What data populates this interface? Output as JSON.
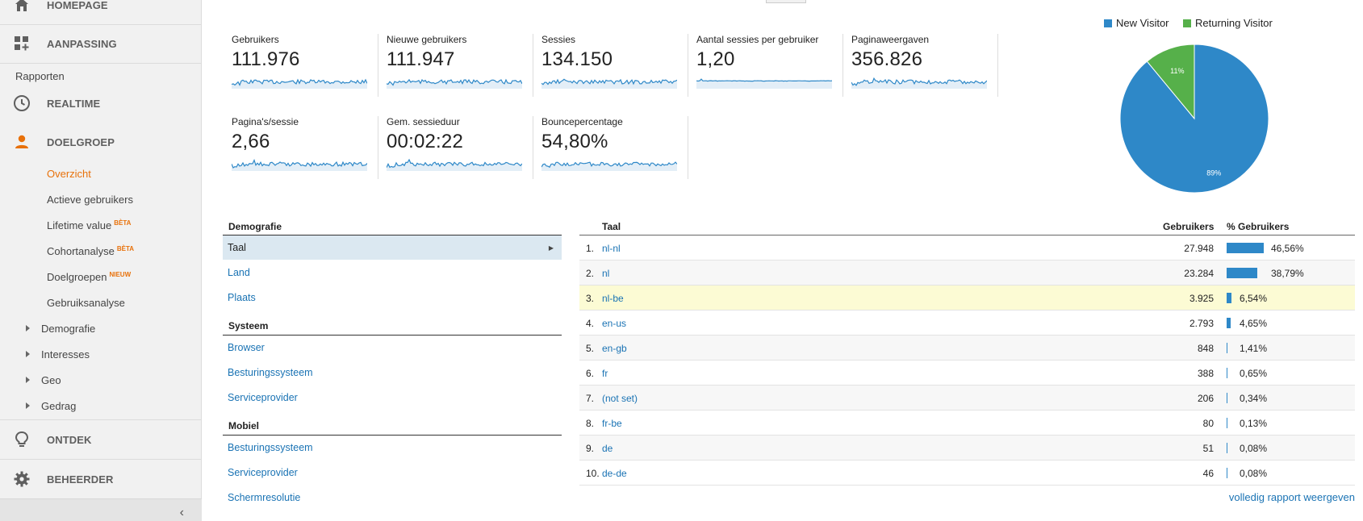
{
  "sidebar": {
    "home_label": "HOMEPAGE",
    "customization_label": "AANPASSING",
    "reports_section": "Rapporten",
    "realtime_label": "REALTIME",
    "audience_label": "DOELGROEP",
    "sub_items": [
      {
        "label": "Overzicht"
      },
      {
        "label": "Actieve gebruikers"
      },
      {
        "label": "Lifetime value",
        "badge": "BÈTA"
      },
      {
        "label": "Cohortanalyse",
        "badge": "BÈTA"
      },
      {
        "label": "Doelgroepen",
        "badge": "NIEUW"
      },
      {
        "label": "Gebruiksanalyse"
      }
    ],
    "tree_items": [
      "Demografie",
      "Interesses",
      "Geo",
      "Gedrag"
    ],
    "discover_label": "ONTDEK",
    "admin_label": "BEHEERDER",
    "collapse_glyph": "‹"
  },
  "metrics": [
    {
      "label": "Gebruikers",
      "value": "111.976"
    },
    {
      "label": "Nieuwe gebruikers",
      "value": "111.947"
    },
    {
      "label": "Sessies",
      "value": "134.150"
    },
    {
      "label": "Aantal sessies per gebruiker",
      "value": "1,20"
    },
    {
      "label": "Paginaweergaven",
      "value": "356.826"
    },
    {
      "label": "Pagina's/sessie",
      "value": "2,66"
    },
    {
      "label": "Gem. sessieduur",
      "value": "00:02:22"
    },
    {
      "label": "Bouncepercentage",
      "value": "54,80%"
    }
  ],
  "chart_data": {
    "type": "pie",
    "series": [
      {
        "name": "New Visitor",
        "value": 89,
        "label": "89%",
        "color": "#2e88c8"
      },
      {
        "name": "Returning Visitor",
        "value": 11,
        "label": "11%",
        "color": "#56b04a"
      }
    ],
    "legend_position": "top"
  },
  "demografie": {
    "sections": [
      {
        "title": "Demografie",
        "items": [
          "Taal",
          "Land",
          "Plaats"
        ]
      },
      {
        "title": "Systeem",
        "items": [
          "Browser",
          "Besturingssysteem",
          "Serviceprovider"
        ]
      },
      {
        "title": "Mobiel",
        "items": [
          "Besturingssysteem",
          "Serviceprovider",
          "Schermresolutie"
        ]
      }
    ]
  },
  "table": {
    "col_lang": "Taal",
    "col_users": "Gebruikers",
    "col_pct": "% Gebruikers",
    "rows": [
      {
        "rank": "1.",
        "lang": "nl-nl",
        "users": "27.948",
        "pct": "46,56%",
        "share": 46.56
      },
      {
        "rank": "2.",
        "lang": "nl",
        "users": "23.284",
        "pct": "38,79%",
        "share": 38.79
      },
      {
        "rank": "3.",
        "lang": "nl-be",
        "users": "3.925",
        "pct": "6,54%",
        "share": 6.54
      },
      {
        "rank": "4.",
        "lang": "en-us",
        "users": "2.793",
        "pct": "4,65%",
        "share": 4.65
      },
      {
        "rank": "5.",
        "lang": "en-gb",
        "users": "848",
        "pct": "1,41%",
        "share": 1.41
      },
      {
        "rank": "6.",
        "lang": "fr",
        "users": "388",
        "pct": "0,65%",
        "share": 0.65
      },
      {
        "rank": "7.",
        "lang": "(not set)",
        "users": "206",
        "pct": "0,34%",
        "share": 0.34
      },
      {
        "rank": "8.",
        "lang": "fr-be",
        "users": "80",
        "pct": "0,13%",
        "share": 0.13
      },
      {
        "rank": "9.",
        "lang": "de",
        "users": "51",
        "pct": "0,08%",
        "share": 0.08
      },
      {
        "rank": "10.",
        "lang": "de-de",
        "users": "46",
        "pct": "0,08%",
        "share": 0.08
      }
    ],
    "full_report_link": "volledig rapport weergeven"
  },
  "colors": {
    "accent_orange": "#e8710a",
    "link_blue": "#1a73b4",
    "bar_blue": "#2e88c8",
    "pie_green": "#56b04a"
  }
}
